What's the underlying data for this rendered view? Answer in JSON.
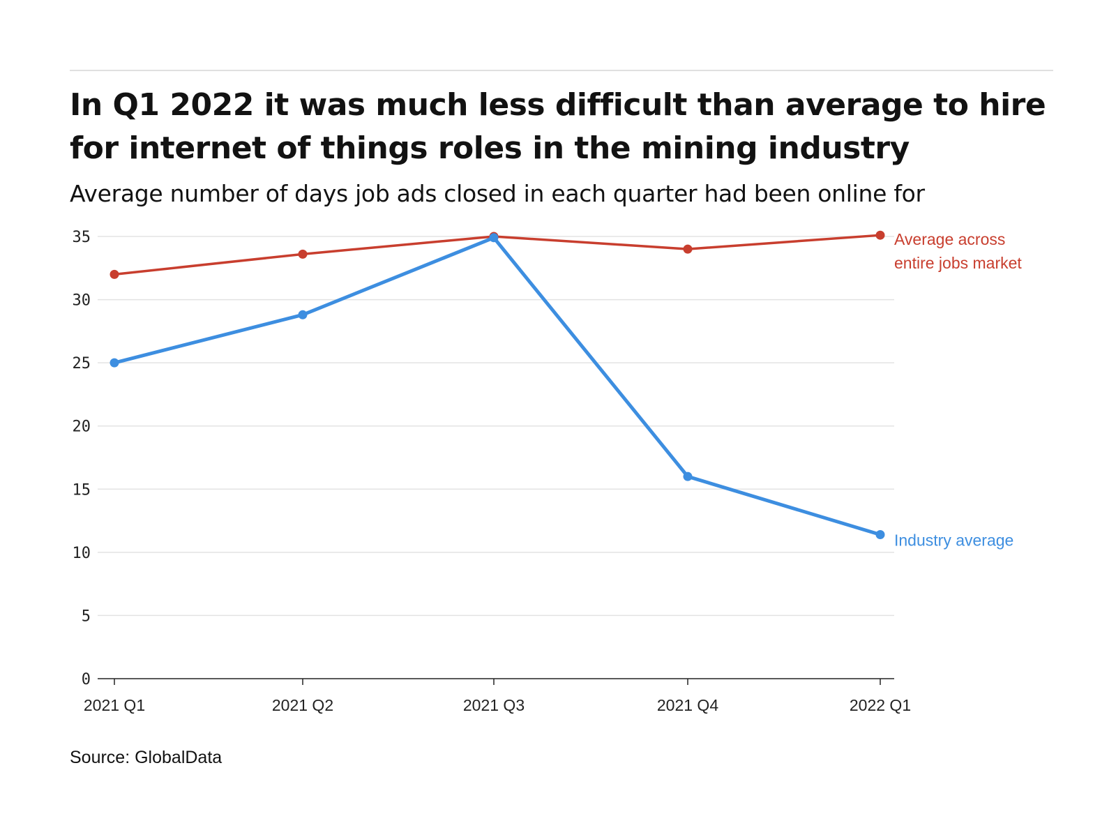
{
  "chart_data": {
    "type": "line",
    "title": "In Q1 2022 it was much less difficult than average to hire for internet of things roles in the mining industry",
    "subtitle": "Average number of days job ads closed in each quarter had been online for",
    "categories": [
      "2021 Q1",
      "2021 Q2",
      "2021 Q3",
      "2021 Q4",
      "2022 Q1"
    ],
    "series": [
      {
        "name": "Average across entire jobs market",
        "label_lines": [
          "Average across",
          "entire jobs market"
        ],
        "color": "#c83e2e",
        "values": [
          32.0,
          33.6,
          35.0,
          34.0,
          35.1
        ]
      },
      {
        "name": "Industry average",
        "label_lines": [
          "Industry average"
        ],
        "color": "#3d8ee0",
        "values": [
          25.0,
          28.8,
          34.9,
          16.0,
          11.4
        ]
      }
    ],
    "yticks": [
      0,
      5,
      10,
      15,
      20,
      25,
      30,
      35
    ],
    "ylim": [
      0,
      35
    ],
    "xlabel": "",
    "ylabel": "",
    "grid": true,
    "legend": "inline-right"
  },
  "source": "Source: GlobalData"
}
